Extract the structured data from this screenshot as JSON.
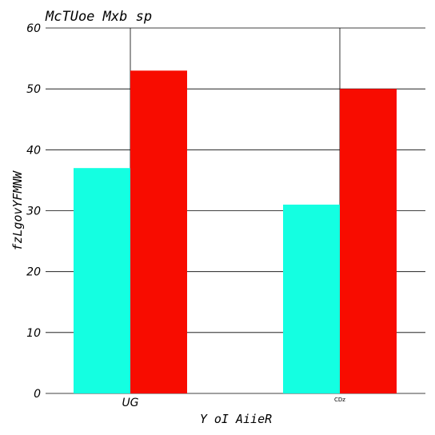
{
  "chart_data": {
    "type": "bar",
    "title": "McTUoe Mxb sp",
    "xlabel": "Y  oI AiieR",
    "ylabel": "fzLgovYFMNW",
    "categories": [
      "UG",
      "CDz"
    ],
    "category_label_sizes": [
      "normal",
      "tiny"
    ],
    "series": [
      {
        "values": [
          37,
          31
        ],
        "color": "#14ffe1"
      },
      {
        "values": [
          53,
          50
        ],
        "color": "#f80c00"
      }
    ],
    "ylim": [
      0,
      60
    ],
    "yticks": [
      0,
      10,
      20,
      30,
      40,
      50,
      60
    ],
    "grid": {
      "horizontal": true,
      "vertical": true
    },
    "legend": "none"
  }
}
